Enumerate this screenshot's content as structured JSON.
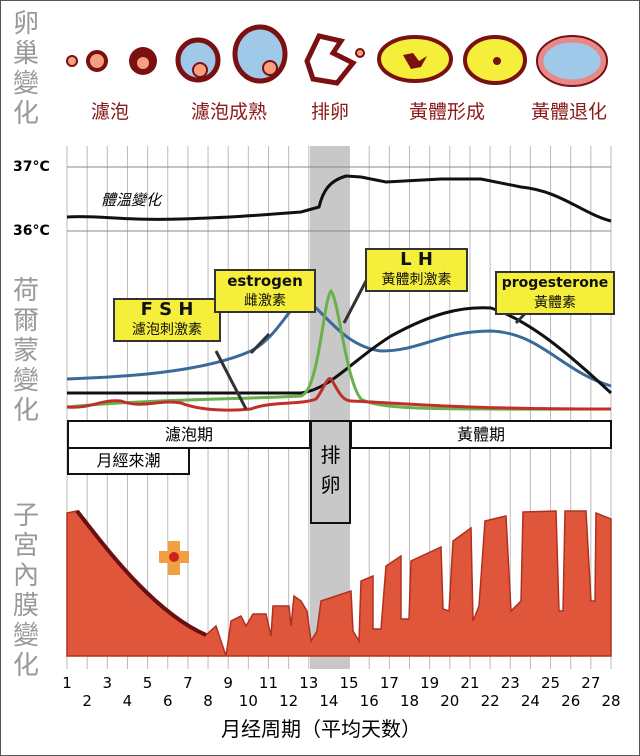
{
  "sections": {
    "ovary": "卵巢變化",
    "hormone": "荷爾蒙變化",
    "endometrium": "子宮內膜變化"
  },
  "ovary_stages": [
    "濾泡",
    "濾泡成熟",
    "排卵",
    "黃體形成",
    "黃體退化"
  ],
  "temperature": {
    "high": "37°C",
    "low": "36°C",
    "label": "體溫變化"
  },
  "hormones": {
    "fsh": {
      "name": "F S H",
      "cn": "濾泡刺激素",
      "color": "#c0302a"
    },
    "estrogen": {
      "name": "estrogen",
      "cn": "雌激素",
      "color": "#3a6a9a"
    },
    "lh": {
      "name": "L H",
      "cn": "黃體刺激素",
      "color": "#6ab04c"
    },
    "progesterone": {
      "name": "progesterone",
      "cn": "黃體素",
      "color": "#111111"
    }
  },
  "phases": {
    "follicular": "濾泡期",
    "ovulation": "排卵",
    "luteal": "黃體期",
    "menstruation": "月經來潮"
  },
  "days": [
    1,
    2,
    3,
    4,
    5,
    6,
    7,
    8,
    9,
    10,
    11,
    12,
    13,
    14,
    15,
    16,
    17,
    18,
    19,
    20,
    21,
    22,
    23,
    24,
    25,
    26,
    27,
    28
  ],
  "x_axis_title": "月经周期（平均天数）",
  "colors": {
    "endometrium": "#e0563a",
    "callout": "#f5ee3a",
    "ovulation_band": "#c8c8c8"
  }
}
